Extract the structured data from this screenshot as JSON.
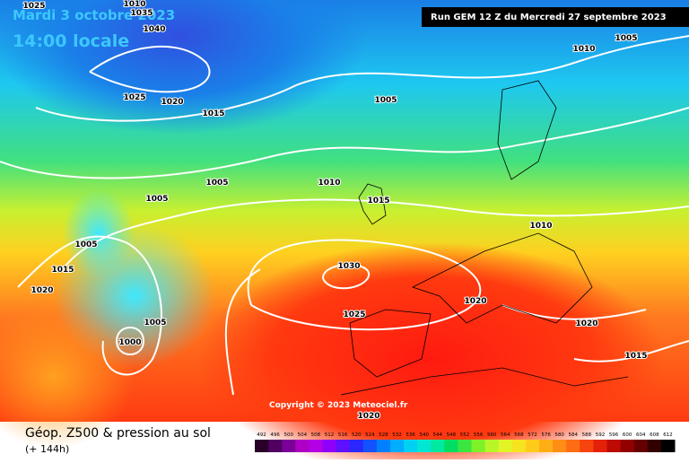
{
  "header": {
    "date": "Mardi 3 octobre 2023",
    "time": "14:00 locale",
    "run": "Run GEM 12 Z du Mercredi 27 septembre 2023"
  },
  "isobar_labels": [
    "1025",
    "1010",
    "1035",
    "1040",
    "1025",
    "1020",
    "1015",
    "1005",
    "1010",
    "1005",
    "1005",
    "1005",
    "1010",
    "1015",
    "1010",
    "1005",
    "1015",
    "1020",
    "1030",
    "1020",
    "1025",
    "1005",
    "1000",
    "1020",
    "1015",
    "1020"
  ],
  "copyright": "Copyright © 2023 Meteociel.fr",
  "footer": {
    "title": "Géop. Z500 & pression au sol",
    "lead": "(+ 144h)"
  },
  "colorbar": {
    "labels": [
      "492",
      "496",
      "500",
      "504",
      "508",
      "512",
      "516",
      "520",
      "524",
      "528",
      "532",
      "536",
      "540",
      "544",
      "548",
      "552",
      "556",
      "560",
      "564",
      "568",
      "572",
      "576",
      "580",
      "584",
      "588",
      "592",
      "596",
      "600",
      "604",
      "608",
      "612"
    ]
  }
}
